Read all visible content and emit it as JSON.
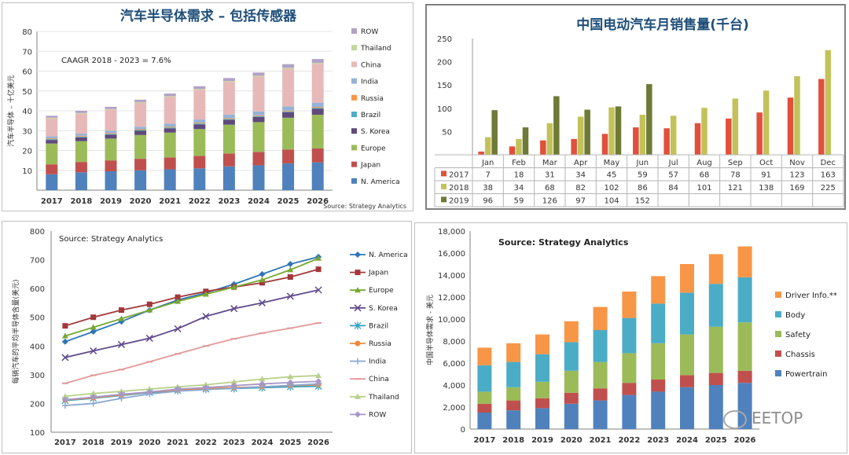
{
  "watermark": "EETOP",
  "chart_data": [
    {
      "id": "c1",
      "type": "bar",
      "stacked": true,
      "title": "汽车半导体需求 – 包括传感器",
      "ylabel": "汽车半导体 – 十亿美元",
      "annotation": "CAAGR 2018 - 2023 = 7.6%",
      "source": "Source: Strategy Analytics",
      "categories": [
        "2017",
        "2018",
        "2019",
        "2020",
        "2021",
        "2022",
        "2023",
        "2024",
        "2025",
        "2026"
      ],
      "ylim": [
        0,
        80
      ],
      "yticks": [
        10,
        20,
        30,
        40,
        50,
        60,
        70,
        80
      ],
      "legend_position": "right",
      "series": [
        {
          "name": "N. America",
          "color": "#4f81bd",
          "values": [
            8,
            9,
            9.5,
            10,
            10.5,
            11,
            12,
            12.5,
            13.5,
            14
          ]
        },
        {
          "name": "Japan",
          "color": "#c0504d",
          "values": [
            5,
            5.2,
            5.5,
            5.8,
            6,
            6.3,
            6.5,
            6.8,
            7,
            7
          ]
        },
        {
          "name": "Europe",
          "color": "#9bbb59",
          "values": [
            10.5,
            10.5,
            11,
            12,
            12.5,
            13.5,
            14.5,
            15,
            16,
            17
          ]
        },
        {
          "name": "S. Korea",
          "color": "#604a7b",
          "values": [
            1.8,
            1.9,
            2,
            2.1,
            2.2,
            2.4,
            2.5,
            2.6,
            2.8,
            3
          ]
        },
        {
          "name": "Brazil",
          "color": "#4bacc6",
          "values": [
            0.4,
            0.4,
            0.4,
            0.4,
            0.4,
            0.4,
            0.4,
            0.4,
            0.4,
            0.4
          ]
        },
        {
          "name": "Russia",
          "color": "#f79646",
          "values": [
            0.4,
            0.4,
            0.4,
            0.4,
            0.4,
            0.4,
            0.4,
            0.4,
            0.4,
            0.4
          ]
        },
        {
          "name": "India",
          "color": "#95b3d7",
          "values": [
            1,
            1.1,
            1.2,
            1.3,
            1.5,
            1.6,
            1.8,
            2,
            2.1,
            2.3
          ]
        },
        {
          "name": "China",
          "color": "#e6b9b8",
          "values": [
            9,
            10,
            10.5,
            12,
            13.5,
            15,
            16.5,
            17.5,
            19,
            19.5
          ]
        },
        {
          "name": "Thailand",
          "color": "#c4d79b",
          "values": [
            0.4,
            0.4,
            0.4,
            0.4,
            0.4,
            0.4,
            0.4,
            0.5,
            0.5,
            0.5
          ]
        },
        {
          "name": "ROW",
          "color": "#b2a1c7",
          "values": [
            1,
            1.1,
            1.1,
            1.2,
            1.3,
            1.4,
            1.5,
            1.6,
            1.8,
            2
          ]
        }
      ]
    },
    {
      "id": "c2",
      "type": "bar",
      "title": "中国电动汽车月销售量(千台)",
      "categories": [
        "Jan",
        "Feb",
        "Mar",
        "Apr",
        "May",
        "Jun",
        "Jul",
        "Aug",
        "Sep",
        "Oct",
        "Nov",
        "Dec"
      ],
      "ylim": [
        0,
        250
      ],
      "yticks": [
        50,
        100,
        150,
        200,
        250
      ],
      "data_table": true,
      "series": [
        {
          "name": "2017",
          "color": "#e0503c",
          "values": [
            7,
            18,
            31,
            34,
            45,
            59,
            57,
            68,
            78,
            91,
            123,
            163
          ]
        },
        {
          "name": "2018",
          "color": "#c3c25a",
          "values": [
            38,
            34,
            68,
            82,
            102,
            86,
            84,
            101,
            121,
            138,
            169,
            225
          ]
        },
        {
          "name": "2019",
          "color": "#6e7a36",
          "values": [
            96,
            59,
            126,
            97,
            104,
            152,
            null,
            null,
            null,
            null,
            null,
            null
          ]
        }
      ]
    },
    {
      "id": "c3",
      "type": "line",
      "ylabel": "每辆汽车的平均半导体含量(美元)",
      "source": "Source: Strategy Analytics",
      "x": [
        "2017",
        "2018",
        "2019",
        "2020",
        "2021",
        "2022",
        "2023",
        "2024",
        "2025",
        "2026"
      ],
      "ylim": [
        100,
        800
      ],
      "yticks": [
        100,
        200,
        300,
        400,
        500,
        600,
        700,
        800
      ],
      "legend_position": "right",
      "series": [
        {
          "name": "N. America",
          "color": "#2e75b6",
          "marker": "diamond",
          "values": [
            415,
            450,
            485,
            525,
            560,
            585,
            615,
            650,
            685,
            710
          ]
        },
        {
          "name": "Japan",
          "color": "#a3373a",
          "marker": "square",
          "values": [
            470,
            500,
            525,
            545,
            570,
            590,
            605,
            620,
            640,
            667
          ]
        },
        {
          "name": "Europe",
          "color": "#77a832",
          "marker": "triangle",
          "values": [
            435,
            465,
            495,
            525,
            555,
            580,
            605,
            630,
            665,
            705
          ]
        },
        {
          "name": "S. Korea",
          "color": "#5f4a8b",
          "marker": "x",
          "values": [
            360,
            383,
            405,
            427,
            460,
            503,
            530,
            550,
            573,
            595
          ]
        },
        {
          "name": "Brazil",
          "color": "#31a0c0",
          "marker": "star",
          "values": [
            210,
            218,
            228,
            238,
            245,
            250,
            252,
            255,
            258,
            260
          ]
        },
        {
          "name": "Russia",
          "color": "#ed8a3a",
          "marker": "circle",
          "values": [
            212,
            220,
            230,
            240,
            247,
            252,
            255,
            258,
            262,
            265
          ]
        },
        {
          "name": "India",
          "color": "#8aa7d2",
          "marker": "plus",
          "values": [
            193,
            200,
            218,
            233,
            243,
            248,
            253,
            258,
            263,
            268
          ]
        },
        {
          "name": "China",
          "color": "#e29a9a",
          "marker": "dash",
          "values": [
            270,
            298,
            318,
            345,
            373,
            400,
            425,
            445,
            462,
            480
          ]
        },
        {
          "name": "Thailand",
          "color": "#b8d08a",
          "marker": "triangle",
          "values": [
            225,
            235,
            242,
            250,
            258,
            265,
            275,
            285,
            293,
            297
          ]
        },
        {
          "name": "ROW",
          "color": "#a896c8",
          "marker": "diamond",
          "values": [
            213,
            222,
            232,
            240,
            250,
            255,
            262,
            268,
            273,
            277
          ]
        }
      ]
    },
    {
      "id": "c4",
      "type": "bar",
      "stacked": true,
      "ylabel": "中国半导体需求 - 美元",
      "source": "Source: Strategy Analytics",
      "categories": [
        "2017",
        "2018",
        "2019",
        "2020",
        "2021",
        "2022",
        "2023",
        "2024",
        "2025",
        "2026"
      ],
      "ylim": [
        0,
        18000
      ],
      "yticks": [
        0,
        2000,
        4000,
        6000,
        8000,
        10000,
        12000,
        14000,
        16000,
        18000
      ],
      "legend_position": "right",
      "series": [
        {
          "name": "Powertrain",
          "color": "#4f81bd",
          "values": [
            1500,
            1700,
            1900,
            2300,
            2600,
            3100,
            3400,
            3800,
            4000,
            4200
          ]
        },
        {
          "name": "Chassis",
          "color": "#c0504d",
          "values": [
            800,
            900,
            900,
            1000,
            1100,
            1100,
            1100,
            1100,
            1100,
            1100
          ]
        },
        {
          "name": "Safety",
          "color": "#9bbb59",
          "values": [
            1100,
            1200,
            1500,
            2000,
            2400,
            2700,
            3300,
            3700,
            4200,
            4400
          ]
        },
        {
          "name": "Body",
          "color": "#4bacc6",
          "values": [
            2400,
            2300,
            2500,
            2600,
            2900,
            3200,
            3600,
            3800,
            3900,
            4100
          ]
        },
        {
          "name": "Driver Info.**",
          "color": "#f79646",
          "values": [
            1600,
            1700,
            1800,
            1900,
            2100,
            2400,
            2500,
            2600,
            2700,
            2800
          ]
        }
      ]
    }
  ]
}
